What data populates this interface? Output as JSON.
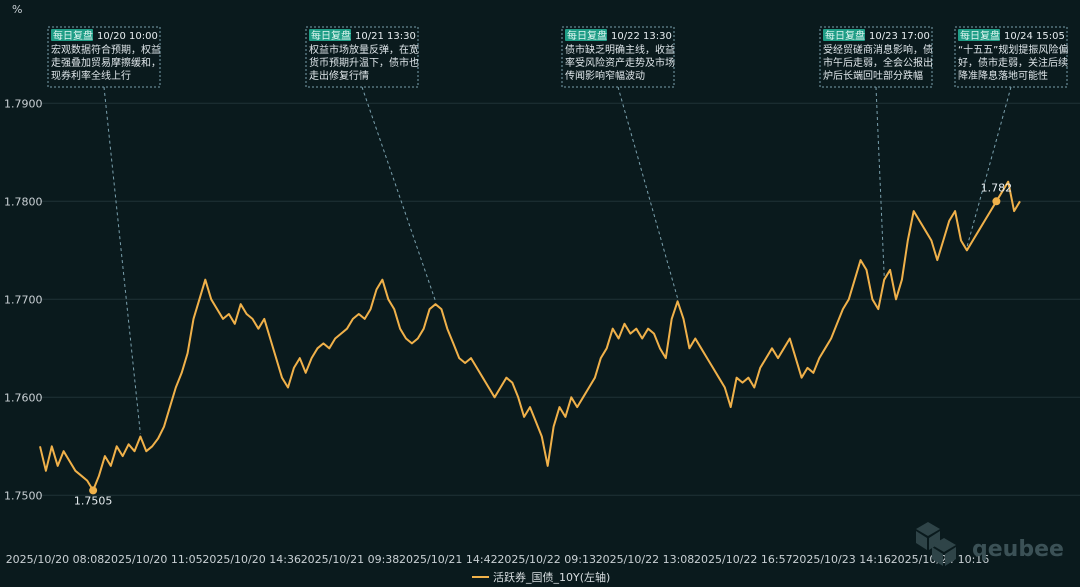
{
  "chart_data": {
    "type": "line",
    "y_unit": "%",
    "ylim": [
      1.7485,
      1.7985
    ],
    "y_ticks": [
      "1.7500",
      "1.7600",
      "1.7700",
      "1.7800",
      "1.7900"
    ],
    "x_ticks": [
      "2025/10/20 08:08",
      "2025/10/20 11:05",
      "2025/10/20 14:36",
      "2025/10/21 09:38",
      "2025/10/21 14:42",
      "2025/10/22 09:13",
      "2025/10/22 13:08",
      "2025/10/22 16:57",
      "2025/10/23 14:16",
      "2025/10/24 10:16"
    ],
    "grid": true,
    "legend_position": "bottom-center",
    "series": [
      {
        "name": "活跃券_国债_10Y(左轴)",
        "color": "#f0b14a",
        "values": [
          1.755,
          1.7525,
          1.755,
          1.753,
          1.7545,
          1.7535,
          1.7525,
          1.752,
          1.7515,
          1.7505,
          1.752,
          1.754,
          1.753,
          1.755,
          1.754,
          1.7552,
          1.7545,
          1.756,
          1.7545,
          1.755,
          1.7558,
          1.757,
          1.759,
          1.761,
          1.7625,
          1.7645,
          1.768,
          1.77,
          1.772,
          1.77,
          1.769,
          1.768,
          1.7685,
          1.7675,
          1.7695,
          1.7685,
          1.768,
          1.767,
          1.768,
          1.766,
          1.764,
          1.762,
          1.761,
          1.763,
          1.764,
          1.7625,
          1.764,
          1.765,
          1.7655,
          1.765,
          1.766,
          1.7665,
          1.767,
          1.768,
          1.7685,
          1.768,
          1.769,
          1.771,
          1.772,
          1.77,
          1.769,
          1.767,
          1.766,
          1.7655,
          1.766,
          1.767,
          1.769,
          1.7695,
          1.769,
          1.767,
          1.7655,
          1.764,
          1.7635,
          1.764,
          1.763,
          1.762,
          1.761,
          1.76,
          1.761,
          1.762,
          1.7615,
          1.76,
          1.758,
          1.759,
          1.7575,
          1.756,
          1.753,
          1.757,
          1.759,
          1.758,
          1.76,
          1.759,
          1.76,
          1.761,
          1.762,
          1.764,
          1.765,
          1.767,
          1.766,
          1.7675,
          1.7665,
          1.767,
          1.766,
          1.767,
          1.7665,
          1.765,
          1.764,
          1.768,
          1.7698,
          1.768,
          1.765,
          1.766,
          1.765,
          1.764,
          1.763,
          1.762,
          1.761,
          1.759,
          1.762,
          1.7615,
          1.762,
          1.761,
          1.763,
          1.764,
          1.765,
          1.764,
          1.765,
          1.766,
          1.764,
          1.762,
          1.763,
          1.7625,
          1.764,
          1.765,
          1.766,
          1.7675,
          1.769,
          1.77,
          1.772,
          1.774,
          1.773,
          1.77,
          1.769,
          1.772,
          1.773,
          1.77,
          1.772,
          1.776,
          1.779,
          1.778,
          1.777,
          1.776,
          1.774,
          1.776,
          1.778,
          1.779,
          1.776,
          1.775,
          1.776,
          1.777,
          1.778,
          1.779,
          1.78,
          1.781,
          1.782,
          1.779,
          1.78
        ]
      }
    ],
    "extremes": [
      {
        "label": "1.7505",
        "index": 9
      },
      {
        "label": "1.782",
        "index": 162
      }
    ],
    "annotations": [
      {
        "tag": "每日复盘",
        "time": "10/20 10:00",
        "lines": [
          "宏观数据符合预期，权益",
          "走强叠加贸易摩擦缓和，",
          "现券利率全线上行"
        ],
        "index": 17
      },
      {
        "tag": "每日复盘",
        "time": "10/21 13:30",
        "lines": [
          "权益市场放量反弹，在宽",
          "货币预期升温下，债市也",
          "走出修复行情"
        ],
        "index": 67
      },
      {
        "tag": "每日复盘",
        "time": "10/22 13:30",
        "lines": [
          "债市缺乏明确主线，收益",
          "率受风险资产走势及市场",
          "传闻影响窄幅波动"
        ],
        "index": 108
      },
      {
        "tag": "每日复盘",
        "time": "10/23 17:00",
        "lines": [
          "受经贸磋商消息影响，债",
          "市午后走弱，全会公报出",
          "炉后长端回吐部分跌幅"
        ],
        "index": 143
      },
      {
        "tag": "每日复盘",
        "time": "10/24 15:05",
        "lines": [
          "“十五五”规划提振风险偏",
          "好，债市走弱，关注后续",
          "降准降息落地可能性"
        ],
        "index": 157
      }
    ]
  },
  "watermark": "qeubee"
}
